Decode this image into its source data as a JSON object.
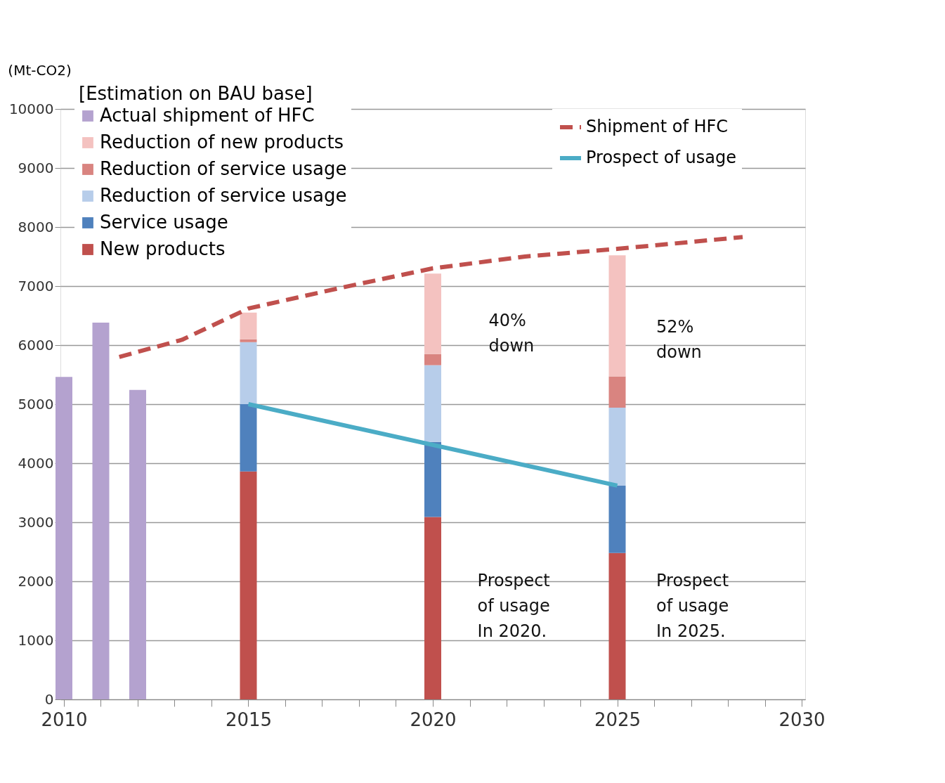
{
  "chart_data": {
    "type": "bar",
    "stacked": true,
    "ylabel": "(Mt-CO2)",
    "legend_title": "[Estimation on BAU base]",
    "legend": "top",
    "grid": "y",
    "x": [
      2010,
      2011,
      2012,
      2015,
      2020,
      2025
    ],
    "xlim": [
      2010,
      2030
    ],
    "ylim": [
      0,
      10000
    ],
    "xticks": [
      2010,
      {
        "value": 2011,
        "label": null
      },
      {
        "value": 2012,
        "label": null
      },
      {
        "value": 2013,
        "label": null
      },
      {
        "value": 2014,
        "label": null
      },
      2015,
      {
        "value": 2016,
        "label": null
      },
      {
        "value": 2017,
        "label": null
      },
      {
        "value": 2018,
        "label": null
      },
      {
        "value": 2019,
        "label": null
      },
      2020,
      {
        "value": 2021,
        "label": null
      },
      {
        "value": 2022,
        "label": null
      },
      {
        "value": 2023,
        "label": null
      },
      {
        "value": 2024,
        "label": null
      },
      2025,
      {
        "value": 2026,
        "label": null
      },
      {
        "value": 2027,
        "label": null
      },
      {
        "value": 2028,
        "label": null
      },
      {
        "value": 2029,
        "label": null
      },
      2030
    ],
    "yticks": [
      0,
      1000,
      2000,
      3000,
      4000,
      5000,
      6000,
      7000,
      8000,
      9000,
      10000
    ],
    "series": [
      {
        "name": "New products",
        "color": "#c0504d",
        "values": [
          null,
          null,
          null,
          3860,
          3090,
          2480
        ]
      },
      {
        "name": "Service usage",
        "color": "#4f81bd",
        "values": [
          null,
          null,
          null,
          1140,
          1270,
          1140
        ]
      },
      {
        "name": "Reduction of service usage",
        "color": "#b7cdea",
        "values": [
          null,
          null,
          null,
          1050,
          1300,
          1320
        ]
      },
      {
        "name": "Reduction of service usage",
        "color": "#d98480",
        "values": [
          null,
          null,
          null,
          50,
          190,
          530
        ]
      },
      {
        "name": "Reduction of new products",
        "color": "#f4c2c0",
        "values": [
          null,
          null,
          null,
          450,
          1360,
          2050
        ]
      },
      {
        "name": "Actual shipment of HFC",
        "color": "#b4a2cf",
        "values": [
          5460,
          6380,
          5240,
          null,
          null,
          null
        ]
      },
      {
        "name": "Shipment of HFC",
        "type": "line",
        "line_style": "dashed",
        "color": "#c0504d",
        "x": [
          2011.5,
          2013.2,
          2015,
          2017.5,
          2020,
          2022.5,
          2025,
          2028.4
        ],
        "values": [
          5800,
          6090,
          6620,
          6970,
          7300,
          7500,
          7630,
          7830
        ]
      },
      {
        "name": "Prospect of usage",
        "type": "line",
        "line_style": "solid",
        "color": "#4bacc6",
        "x": [
          2015,
          2025
        ],
        "values": [
          5000,
          3620
        ]
      }
    ],
    "annotations": [
      "40%\ndown",
      "52%\ndown",
      "Prospect\nof usage\nIn 2020.",
      "Prospect\nof usage\nIn 2025."
    ]
  }
}
